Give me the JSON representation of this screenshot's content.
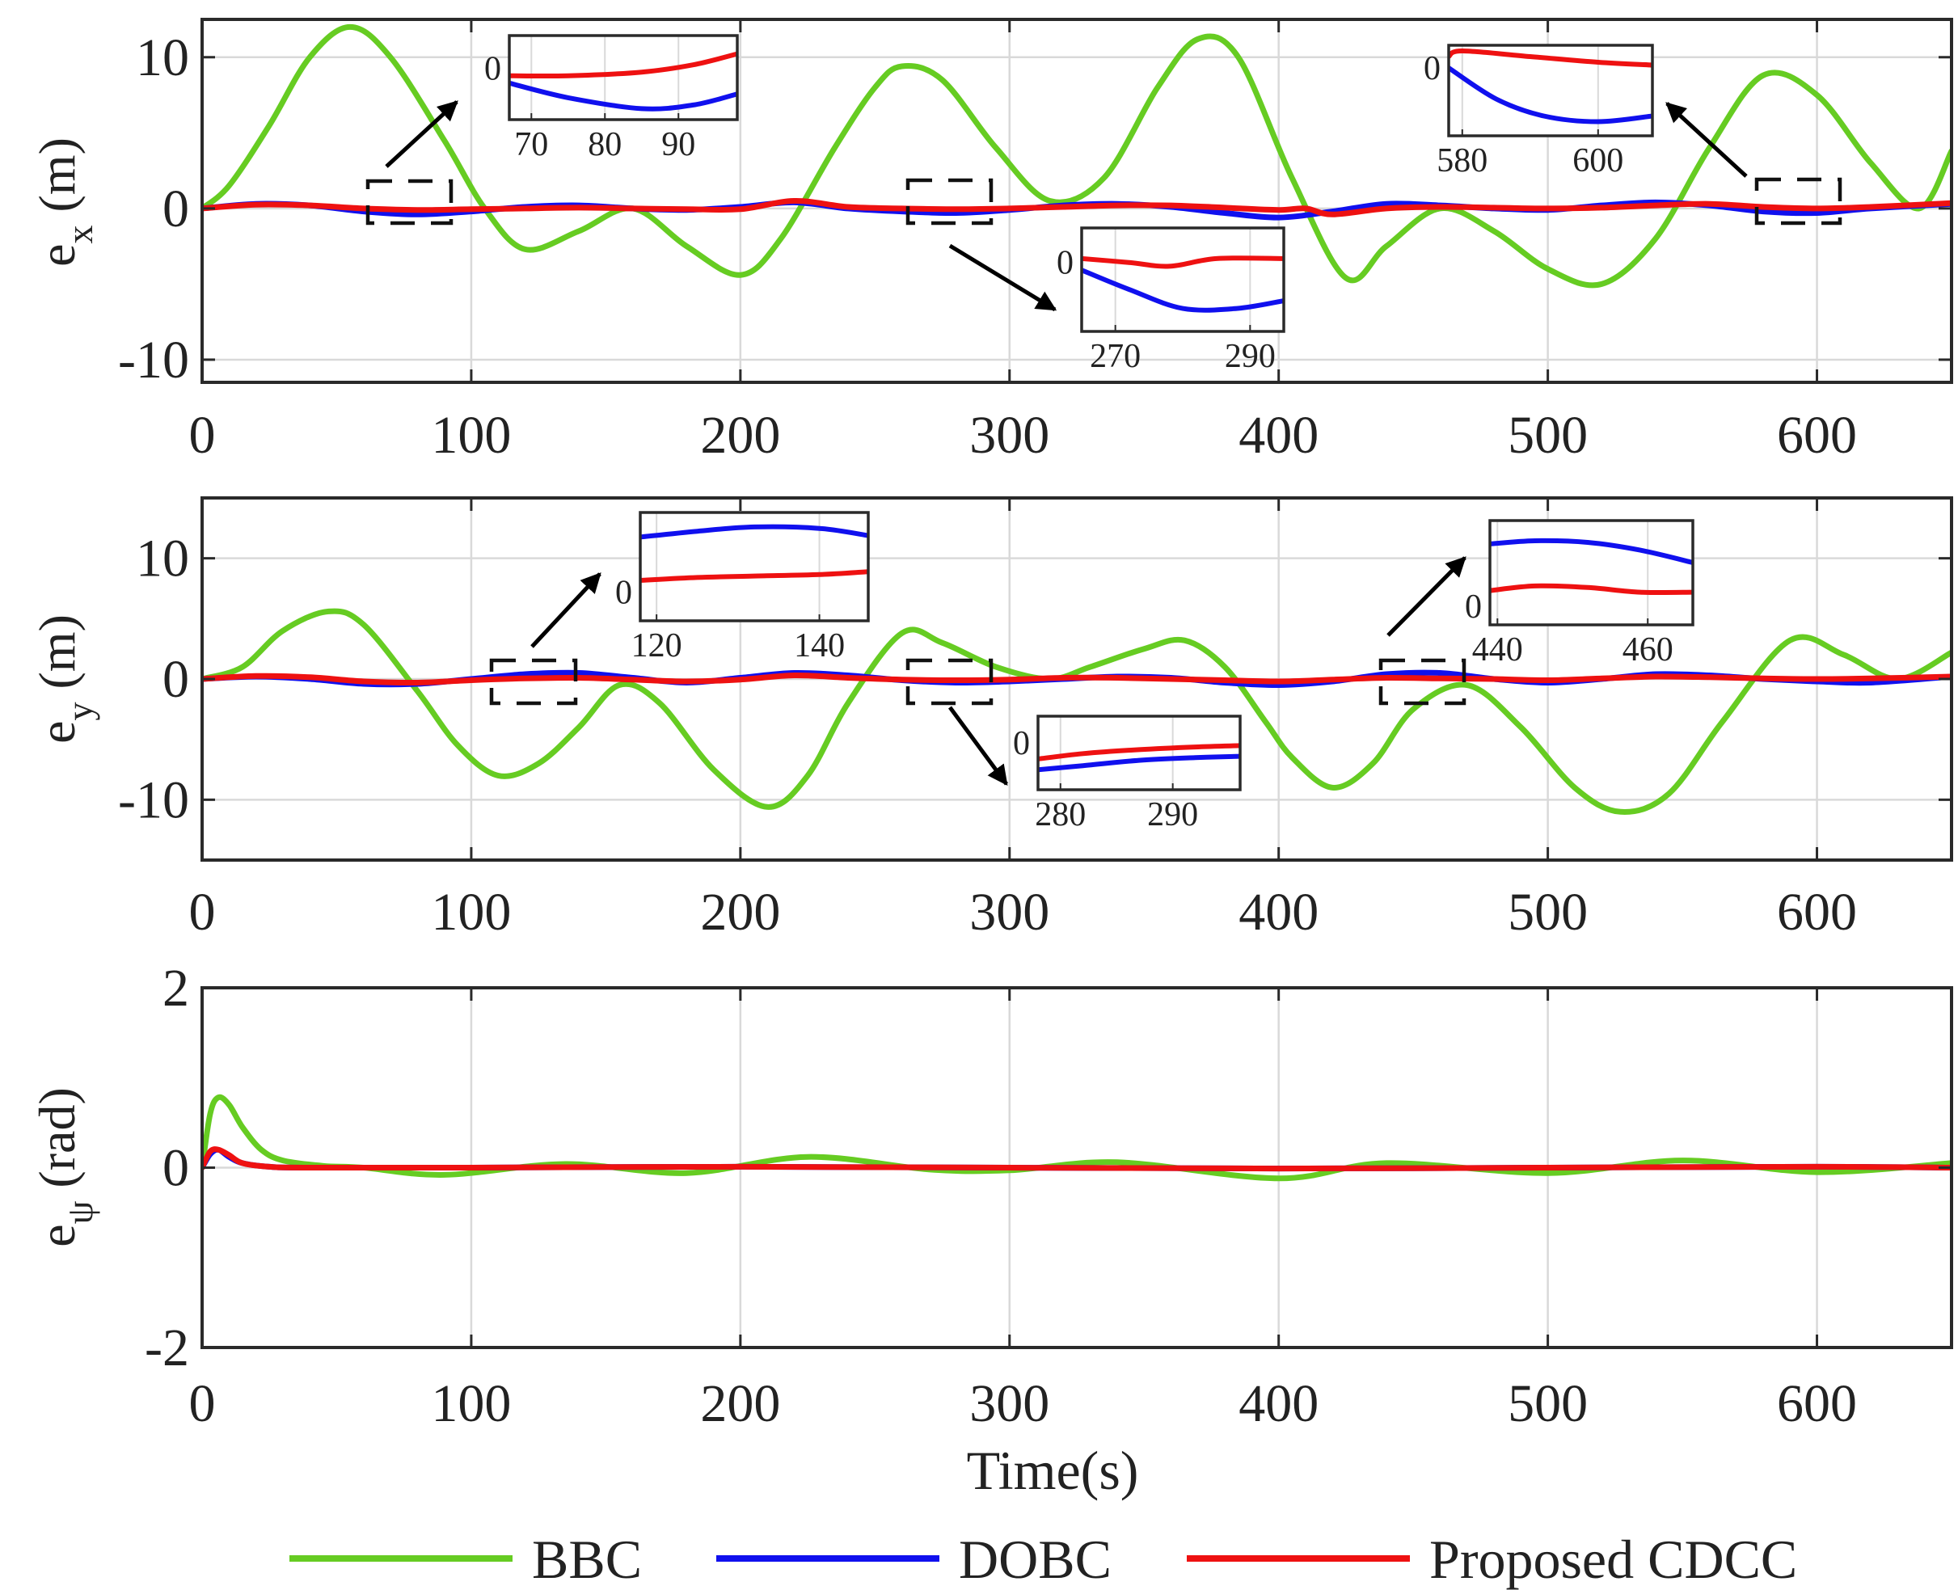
{
  "figure": {
    "legend": {
      "placement": "bottom-center",
      "entries": [
        {
          "label": "BBC",
          "color": "#66cc22"
        },
        {
          "label": "DOBC",
          "color": "#1010ee"
        },
        {
          "label": "Proposed CDCC",
          "color": "#ee1111"
        }
      ]
    }
  },
  "chart_data": [
    {
      "type": "line",
      "ylabel": "e",
      "ylabel_sub": "x",
      "ylabel_unit": " (m)",
      "xlabel": "",
      "xlim": [
        0,
        650
      ],
      "ylim": [
        -11.5,
        12.5
      ],
      "x_ticks": [
        "0",
        "100",
        "200",
        "300",
        "400",
        "500",
        "600"
      ],
      "y_ticks": [
        {
          "v": 10,
          "t": "10"
        },
        {
          "v": 0,
          "t": "0"
        },
        {
          "v": -10,
          "t": "-10"
        }
      ],
      "grid": true,
      "series": [
        {
          "name": "BBC",
          "color": "#66cc22",
          "x": [
            0,
            10,
            25,
            40,
            55,
            70,
            90,
            105,
            120,
            140,
            160,
            180,
            200,
            215,
            235,
            250,
            260,
            275,
            295,
            315,
            335,
            355,
            370,
            385,
            405,
            425,
            440,
            460,
            480,
            500,
            520,
            540,
            560,
            580,
            600,
            620,
            638,
            650
          ],
          "y": [
            0,
            1.5,
            5.5,
            10,
            12,
            10,
            4.5,
            0,
            -2.7,
            -1.5,
            0,
            -2.5,
            -4.4,
            -2,
            4,
            8,
            9.4,
            8.5,
            4,
            0.5,
            2,
            8,
            11.2,
            10,
            2,
            -4.6,
            -2.5,
            0,
            -1.5,
            -4,
            -5,
            -2,
            4,
            8.8,
            7.5,
            3,
            0,
            3.8
          ]
        },
        {
          "name": "DOBC",
          "color": "#1010ee",
          "x": [
            0,
            20,
            40,
            60,
            80,
            100,
            120,
            140,
            160,
            180,
            200,
            220,
            240,
            260,
            280,
            300,
            320,
            340,
            360,
            380,
            400,
            420,
            440,
            460,
            480,
            500,
            520,
            540,
            560,
            580,
            600,
            620,
            650
          ],
          "y": [
            0,
            0.3,
            0.2,
            -0.2,
            -0.4,
            -0.2,
            0.1,
            0.2,
            0,
            -0.1,
            0.1,
            0.4,
            0,
            -0.2,
            -0.3,
            -0.1,
            0.2,
            0.3,
            0.1,
            -0.3,
            -0.6,
            -0.2,
            0.3,
            0.2,
            0,
            -0.1,
            0.2,
            0.4,
            0.2,
            -0.2,
            -0.3,
            0,
            0.3
          ]
        },
        {
          "name": "Proposed CDCC",
          "color": "#ee1111",
          "x": [
            0,
            20,
            40,
            60,
            80,
            100,
            120,
            140,
            160,
            180,
            200,
            220,
            240,
            260,
            280,
            300,
            320,
            340,
            360,
            380,
            400,
            410,
            420,
            440,
            460,
            480,
            500,
            520,
            540,
            560,
            580,
            600,
            620,
            650
          ],
          "y": [
            0,
            0.25,
            0.2,
            0,
            -0.1,
            -0.05,
            0,
            0.05,
            0,
            -0.05,
            -0.05,
            0.5,
            0.1,
            0,
            -0.05,
            0,
            0.1,
            0.2,
            0.2,
            0.05,
            -0.1,
            0,
            -0.4,
            0,
            0.1,
            0.05,
            0,
            0.05,
            0.2,
            0.3,
            0.1,
            0,
            0.1,
            0.35
          ]
        }
      ],
      "insets": [
        {
          "xr": [
            67,
            98
          ],
          "yr": [
            -0.7,
            0.45
          ],
          "x_ticks": [
            "70",
            "80",
            "90"
          ],
          "y_ticks": [
            "0"
          ],
          "series": [
            {
              "name": "DOBC",
              "color": "#1010ee",
              "x": [
                67,
                75,
                85,
                92,
                98
              ],
              "y": [
                -0.2,
                -0.4,
                -0.55,
                -0.5,
                -0.35
              ]
            },
            {
              "name": "Proposed CDCC",
              "color": "#ee1111",
              "x": [
                67,
                75,
                85,
                92,
                98
              ],
              "y": [
                -0.1,
                -0.1,
                -0.05,
                0.05,
                0.2
              ]
            }
          ]
        },
        {
          "xr": [
            265,
            295
          ],
          "yr": [
            -0.9,
            0.45
          ],
          "x_ticks": [
            "270",
            "290"
          ],
          "y_ticks": [
            "0"
          ],
          "series": [
            {
              "name": "DOBC",
              "color": "#1010ee",
              "x": [
                265,
                272,
                280,
                288,
                295
              ],
              "y": [
                -0.1,
                -0.35,
                -0.6,
                -0.6,
                -0.5
              ]
            },
            {
              "name": "Proposed CDCC",
              "color": "#ee1111",
              "x": [
                265,
                272,
                278,
                285,
                295
              ],
              "y": [
                0.05,
                0,
                -0.05,
                0.05,
                0.05
              ]
            }
          ]
        },
        {
          "xr": [
            578,
            608
          ],
          "yr": [
            -1.2,
            0.4
          ],
          "x_ticks": [
            "580",
            "600"
          ],
          "y_ticks": [
            "0"
          ],
          "series": [
            {
              "name": "DOBC",
              "color": "#1010ee",
              "x": [
                578,
                585,
                592,
                600,
                608
              ],
              "y": [
                0,
                -0.55,
                -0.85,
                -0.95,
                -0.85
              ]
            },
            {
              "name": "Proposed CDCC",
              "color": "#ee1111",
              "x": [
                578,
                580,
                590,
                600,
                608
              ],
              "y": [
                0.2,
                0.3,
                0.2,
                0.1,
                0.05
              ]
            }
          ]
        }
      ]
    },
    {
      "type": "line",
      "ylabel": "e",
      "ylabel_sub": "y",
      "ylabel_unit": " (m)",
      "xlabel": "",
      "xlim": [
        0,
        650
      ],
      "ylim": [
        -15,
        15
      ],
      "x_ticks": [
        "0",
        "100",
        "200",
        "300",
        "400",
        "500",
        "600"
      ],
      "y_ticks": [
        {
          "v": 10,
          "t": "10"
        },
        {
          "v": 0,
          "t": "0"
        },
        {
          "v": -10,
          "t": "-10"
        }
      ],
      "grid": true,
      "series": [
        {
          "name": "BBC",
          "color": "#66cc22",
          "x": [
            0,
            15,
            30,
            47,
            60,
            80,
            95,
            110,
            125,
            140,
            155,
            170,
            190,
            210,
            225,
            240,
            260,
            275,
            295,
            315,
            330,
            350,
            365,
            380,
            395,
            405,
            420,
            435,
            450,
            470,
            490,
            510,
            527,
            545,
            565,
            590,
            610,
            630,
            650
          ],
          "y": [
            0,
            1,
            4,
            5.6,
            4.5,
            -1,
            -5.5,
            -8,
            -7,
            -4,
            -0.5,
            -2,
            -7.5,
            -10.6,
            -8,
            -2,
            3.8,
            3,
            1,
            0,
            1,
            2.5,
            3.2,
            1,
            -3.5,
            -6.5,
            -9,
            -7,
            -2.5,
            -0.5,
            -4,
            -9,
            -11,
            -9.5,
            -3.5,
            3.2,
            2,
            0,
            2.2
          ]
        },
        {
          "name": "DOBC",
          "color": "#1010ee",
          "x": [
            0,
            20,
            40,
            60,
            80,
            100,
            120,
            140,
            160,
            180,
            200,
            220,
            240,
            260,
            280,
            300,
            320,
            340,
            360,
            380,
            400,
            420,
            440,
            460,
            480,
            500,
            520,
            540,
            560,
            580,
            600,
            620,
            650
          ],
          "y": [
            0,
            0.2,
            0,
            -0.4,
            -0.4,
            0,
            0.4,
            0.5,
            0.1,
            -0.3,
            0.1,
            0.5,
            0.3,
            -0.1,
            -0.3,
            -0.2,
            0,
            0.2,
            0.1,
            -0.3,
            -0.5,
            -0.2,
            0.4,
            0.5,
            0,
            -0.3,
            0,
            0.4,
            0.3,
            0,
            -0.2,
            -0.3,
            0.2
          ]
        },
        {
          "name": "Proposed CDCC",
          "color": "#ee1111",
          "x": [
            0,
            20,
            40,
            60,
            80,
            100,
            120,
            140,
            160,
            180,
            200,
            220,
            240,
            260,
            280,
            300,
            320,
            340,
            360,
            380,
            400,
            420,
            440,
            460,
            480,
            500,
            520,
            540,
            560,
            580,
            600,
            620,
            650
          ],
          "y": [
            0,
            0.25,
            0.15,
            -0.2,
            -0.3,
            -0.1,
            0.05,
            0.1,
            -0.05,
            -0.2,
            -0.05,
            0.3,
            0.1,
            -0.05,
            -0.1,
            -0.05,
            0.1,
            0.1,
            0,
            -0.1,
            -0.2,
            -0.05,
            0.1,
            0.05,
            0,
            -0.1,
            0.05,
            0.2,
            0.15,
            0.05,
            0,
            0.05,
            0.2
          ]
        }
      ],
      "insets": [
        {
          "xr": [
            118,
            146
          ],
          "yr": [
            -0.2,
            0.55
          ],
          "x_ticks": [
            "120",
            "140"
          ],
          "y_ticks": [
            "0"
          ],
          "series": [
            {
              "name": "DOBC",
              "color": "#1010ee",
              "x": [
                118,
                125,
                132,
                140,
                146
              ],
              "y": [
                0.38,
                0.42,
                0.45,
                0.44,
                0.39
              ]
            },
            {
              "name": "Proposed CDCC",
              "color": "#ee1111",
              "x": [
                118,
                125,
                132,
                140,
                146
              ],
              "y": [
                0.08,
                0.1,
                0.11,
                0.12,
                0.14
              ]
            }
          ]
        },
        {
          "xr": [
            278,
            296
          ],
          "yr": [
            -0.35,
            0.2
          ],
          "x_ticks": [
            "280",
            "290"
          ],
          "y_ticks": [
            "0"
          ],
          "series": [
            {
              "name": "DOBC",
              "color": "#1010ee",
              "x": [
                278,
                282,
                287,
                292,
                296
              ],
              "y": [
                -0.2,
                -0.17,
                -0.13,
                -0.11,
                -0.1
              ]
            },
            {
              "name": "Proposed CDCC",
              "color": "#ee1111",
              "x": [
                278,
                282,
                287,
                292,
                296
              ],
              "y": [
                -0.12,
                -0.08,
                -0.05,
                -0.03,
                -0.02
              ]
            }
          ]
        },
        {
          "xr": [
            439,
            466
          ],
          "yr": [
            -0.12,
            0.55
          ],
          "x_ticks": [
            "440",
            "460"
          ],
          "y_ticks": [
            "0"
          ],
          "series": [
            {
              "name": "DOBC",
              "color": "#1010ee",
              "x": [
                439,
                445,
                452,
                459,
                466
              ],
              "y": [
                0.4,
                0.42,
                0.41,
                0.36,
                0.28
              ]
            },
            {
              "name": "Proposed CDCC",
              "color": "#ee1111",
              "x": [
                439,
                445,
                452,
                459,
                466
              ],
              "y": [
                0.1,
                0.13,
                0.12,
                0.09,
                0.09
              ]
            }
          ]
        }
      ]
    },
    {
      "type": "line",
      "ylabel": "e",
      "ylabel_sub": "ψ",
      "ylabel_unit": " (rad)",
      "xlabel": "Time(s)",
      "xlim": [
        0,
        650
      ],
      "ylim": [
        -2,
        2
      ],
      "x_ticks": [
        "0",
        "100",
        "200",
        "300",
        "400",
        "500",
        "600"
      ],
      "y_ticks": [
        {
          "v": 2,
          "t": "2"
        },
        {
          "v": 0,
          "t": "0"
        },
        {
          "v": -2,
          "t": "-2"
        }
      ],
      "grid": true,
      "series": [
        {
          "name": "BBC",
          "color": "#66cc22",
          "x": [
            0,
            3,
            6,
            10,
            15,
            22,
            30,
            45,
            60,
            90,
            135,
            180,
            225,
            270,
            300,
            340,
            400,
            440,
            500,
            550,
            600,
            650
          ],
          "y": [
            0,
            0.6,
            0.78,
            0.7,
            0.45,
            0.2,
            0.08,
            0.02,
            0,
            -0.08,
            0.04,
            -0.06,
            0.12,
            -0.02,
            -0.03,
            0.06,
            -0.12,
            0.05,
            -0.06,
            0.08,
            -0.05,
            0.05
          ]
        },
        {
          "name": "DOBC",
          "color": "#1010ee",
          "x": [
            0,
            3,
            6,
            10,
            15,
            25,
            40,
            100,
            200,
            300,
            400,
            500,
            600,
            650
          ],
          "y": [
            0,
            0.15,
            0.2,
            0.12,
            0.05,
            0.01,
            0,
            0,
            0.01,
            0,
            -0.01,
            0,
            0.01,
            0
          ]
        },
        {
          "name": "Proposed CDCC",
          "color": "#ee1111",
          "x": [
            0,
            3,
            6,
            10,
            15,
            25,
            40,
            100,
            200,
            300,
            400,
            500,
            600,
            650
          ],
          "y": [
            0,
            0.18,
            0.2,
            0.14,
            0.05,
            0.01,
            0,
            0,
            0.01,
            0,
            -0.01,
            0,
            0.01,
            0
          ]
        }
      ],
      "insets": []
    }
  ]
}
